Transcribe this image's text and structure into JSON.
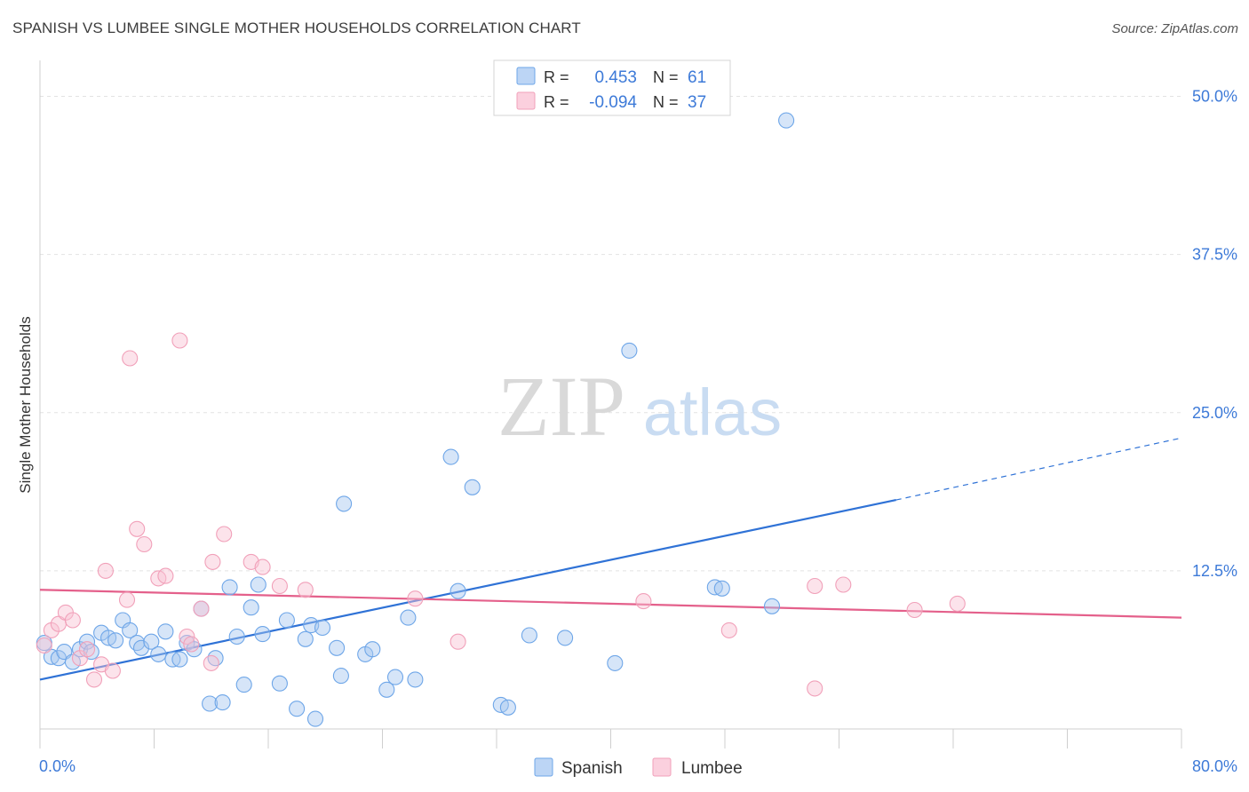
{
  "header": {
    "title": "SPANISH VS LUMBEE SINGLE MOTHER HOUSEHOLDS CORRELATION CHART",
    "source": "Source: ZipAtlas.com"
  },
  "watermark": {
    "zip": "ZIP",
    "atlas": "atlas"
  },
  "legend_stats": [
    {
      "r_label": "R =",
      "r_value": "0.453",
      "n_label": "N =",
      "n_value": "61",
      "color": "#6ea6e8"
    },
    {
      "r_label": "R =",
      "r_value": "-0.094",
      "n_label": "N =",
      "n_value": "37",
      "color": "#f1a0b9"
    }
  ],
  "chart_data": {
    "type": "scatter",
    "title": "SPANISH VS LUMBEE SINGLE MOTHER HOUSEHOLDS CORRELATION CHART",
    "xlabel": "",
    "ylabel": "Single Mother Households",
    "xlim": [
      0,
      80
    ],
    "ylim": [
      0,
      52
    ],
    "x_tick_labels": [
      "0.0%",
      "80.0%"
    ],
    "y_ticks": [
      12.5,
      25.0,
      37.5,
      50.0
    ],
    "y_tick_labels": [
      "12.5%",
      "25.0%",
      "37.5%",
      "50.0%"
    ],
    "grid": true,
    "legend_position": "bottom-center",
    "series": [
      {
        "name": "Spanish",
        "color": "#6ea6e8",
        "points": [
          [
            0.3,
            6.8
          ],
          [
            0.8,
            5.7
          ],
          [
            1.3,
            5.6
          ],
          [
            1.7,
            6.1
          ],
          [
            2.3,
            5.3
          ],
          [
            2.8,
            6.3
          ],
          [
            3.3,
            6.9
          ],
          [
            3.6,
            6.1
          ],
          [
            4.3,
            7.6
          ],
          [
            4.8,
            7.2
          ],
          [
            5.3,
            7.0
          ],
          [
            5.8,
            8.6
          ],
          [
            6.3,
            7.8
          ],
          [
            6.8,
            6.8
          ],
          [
            7.1,
            6.4
          ],
          [
            7.8,
            6.9
          ],
          [
            8.3,
            5.9
          ],
          [
            8.8,
            7.7
          ],
          [
            9.3,
            5.5
          ],
          [
            9.8,
            5.5
          ],
          [
            10.3,
            6.8
          ],
          [
            10.8,
            6.3
          ],
          [
            11.3,
            9.5
          ],
          [
            12.3,
            5.6
          ],
          [
            11.9,
            2.0
          ],
          [
            12.8,
            2.1
          ],
          [
            13.3,
            11.2
          ],
          [
            13.8,
            7.3
          ],
          [
            14.3,
            3.5
          ],
          [
            14.8,
            9.6
          ],
          [
            15.3,
            11.4
          ],
          [
            15.6,
            7.5
          ],
          [
            16.8,
            3.6
          ],
          [
            17.3,
            8.6
          ],
          [
            18.0,
            1.6
          ],
          [
            18.6,
            7.1
          ],
          [
            19.3,
            0.8
          ],
          [
            19.0,
            8.2
          ],
          [
            19.8,
            8.0
          ],
          [
            20.8,
            6.4
          ],
          [
            21.1,
            4.2
          ],
          [
            21.3,
            17.8
          ],
          [
            22.8,
            5.9
          ],
          [
            23.3,
            6.3
          ],
          [
            24.3,
            3.1
          ],
          [
            24.9,
            4.1
          ],
          [
            26.3,
            3.9
          ],
          [
            25.8,
            8.8
          ],
          [
            28.8,
            21.5
          ],
          [
            29.3,
            10.9
          ],
          [
            30.3,
            19.1
          ],
          [
            32.3,
            1.9
          ],
          [
            32.8,
            1.7
          ],
          [
            34.3,
            7.4
          ],
          [
            36.8,
            7.2
          ],
          [
            40.3,
            5.2
          ],
          [
            41.3,
            29.9
          ],
          [
            47.3,
            11.2
          ],
          [
            47.8,
            11.1
          ],
          [
            51.3,
            9.7
          ],
          [
            52.3,
            48.1
          ]
        ]
      },
      {
        "name": "Lumbee",
        "color": "#f1a0b9",
        "points": [
          [
            0.3,
            6.6
          ],
          [
            0.8,
            7.8
          ],
          [
            1.3,
            8.3
          ],
          [
            1.8,
            9.2
          ],
          [
            2.3,
            8.6
          ],
          [
            2.8,
            5.6
          ],
          [
            3.3,
            6.3
          ],
          [
            3.8,
            3.9
          ],
          [
            4.3,
            5.1
          ],
          [
            4.6,
            12.5
          ],
          [
            5.1,
            4.6
          ],
          [
            6.1,
            10.2
          ],
          [
            6.3,
            29.3
          ],
          [
            6.8,
            15.8
          ],
          [
            7.3,
            14.6
          ],
          [
            8.3,
            11.9
          ],
          [
            8.8,
            12.1
          ],
          [
            9.8,
            30.7
          ],
          [
            10.3,
            7.3
          ],
          [
            10.6,
            6.7
          ],
          [
            11.3,
            9.5
          ],
          [
            12.0,
            5.2
          ],
          [
            12.1,
            13.2
          ],
          [
            12.9,
            15.4
          ],
          [
            14.8,
            13.2
          ],
          [
            15.6,
            12.8
          ],
          [
            16.8,
            11.3
          ],
          [
            18.6,
            11.0
          ],
          [
            26.3,
            10.3
          ],
          [
            29.3,
            6.9
          ],
          [
            42.3,
            10.1
          ],
          [
            48.3,
            7.8
          ],
          [
            54.3,
            3.2
          ],
          [
            54.3,
            11.3
          ],
          [
            56.3,
            11.4
          ],
          [
            61.3,
            9.4
          ],
          [
            64.3,
            9.9
          ]
        ]
      }
    ],
    "trend_lines": [
      {
        "series": "Spanish",
        "solid_from": [
          0,
          3.9
        ],
        "solid_to": [
          60,
          18.1
        ],
        "dashed_to": [
          80,
          23.0
        ]
      },
      {
        "series": "Lumbee",
        "solid_from": [
          0,
          11.0
        ],
        "solid_to": [
          80,
          8.8
        ]
      }
    ]
  }
}
